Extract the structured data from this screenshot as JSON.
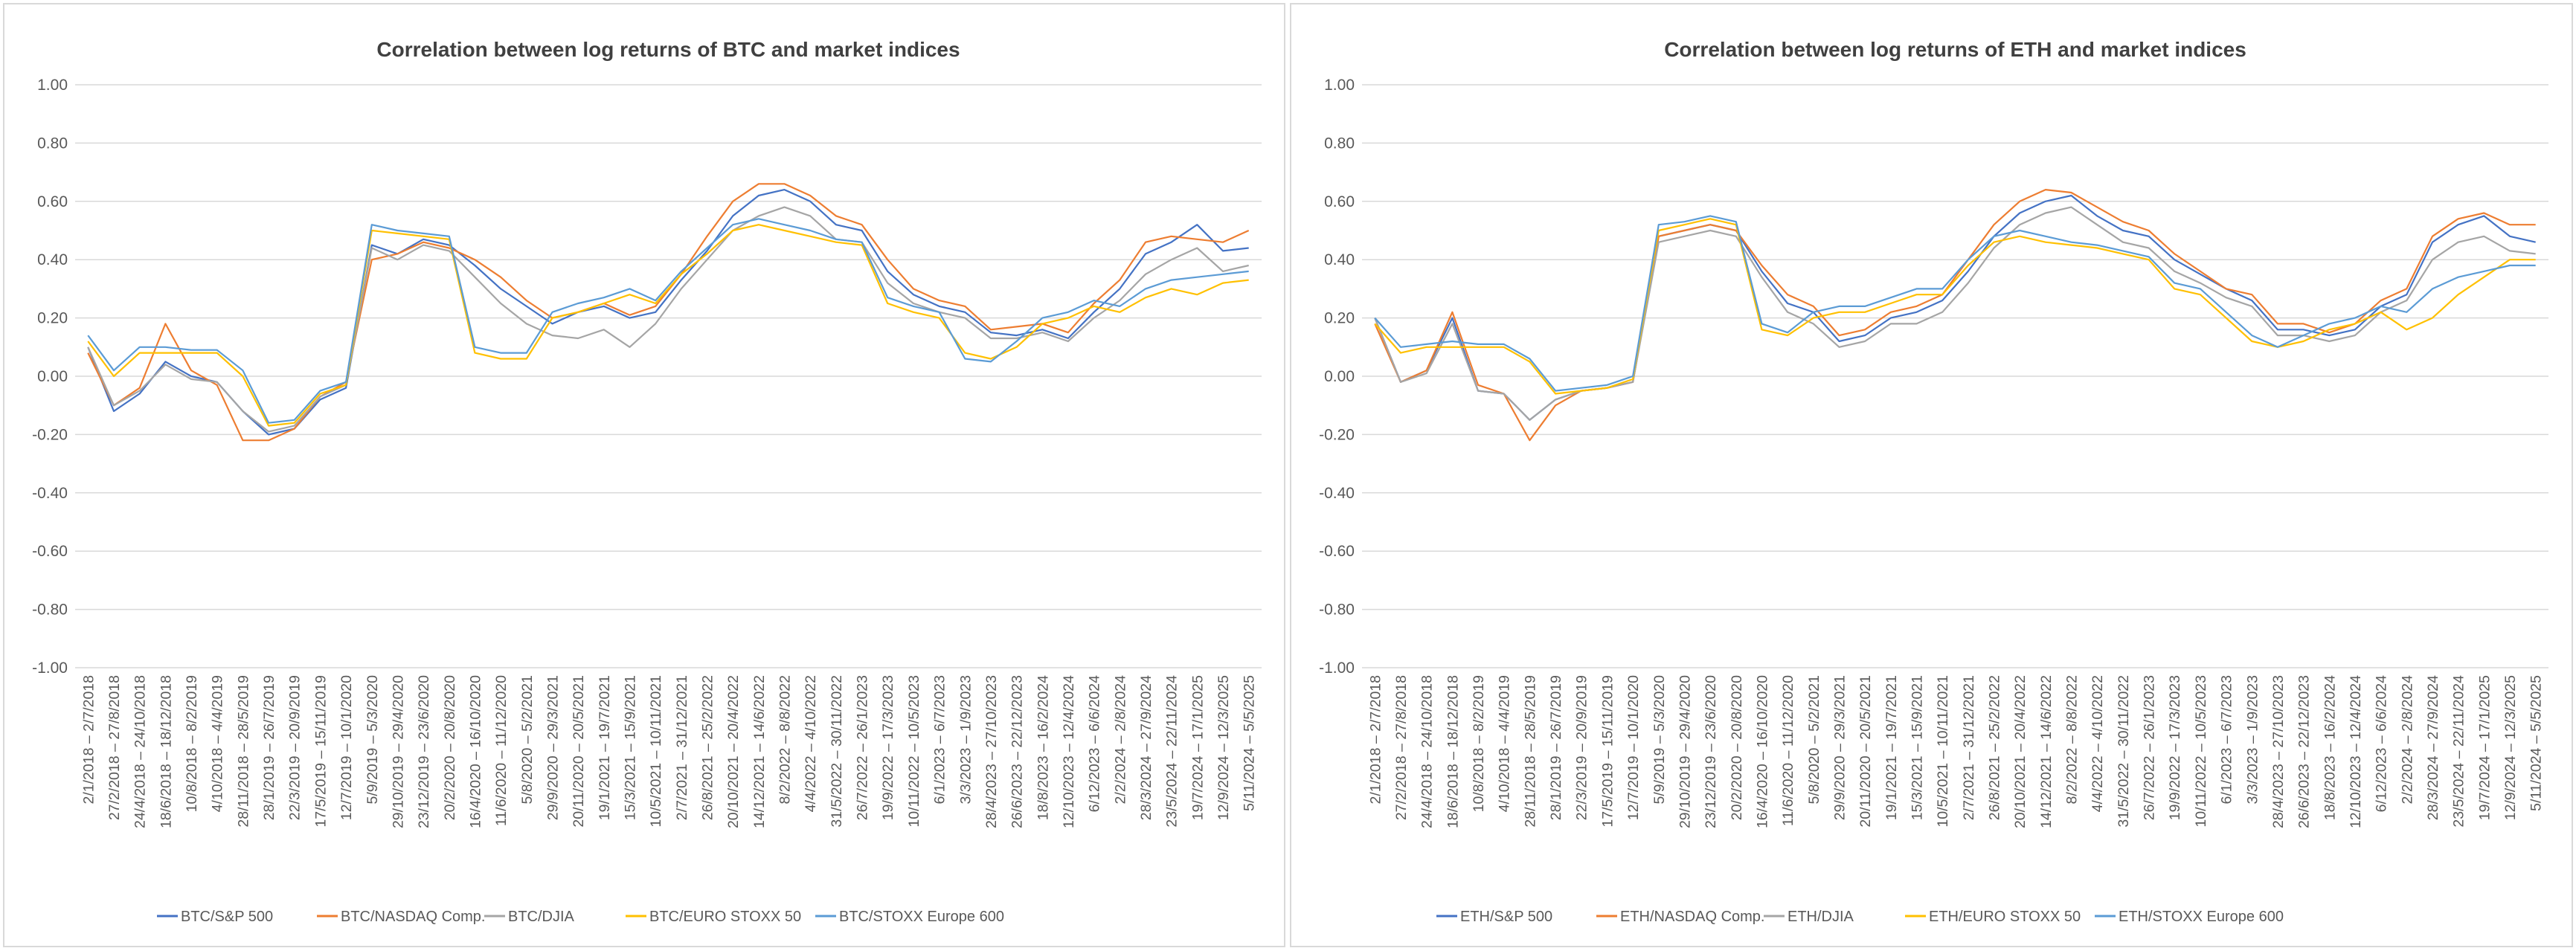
{
  "chart_data": [
    {
      "type": "line",
      "title": "Correlation between log returns of BTC and market indices",
      "xlabel": "",
      "ylabel": "",
      "ylim": [
        -1.0,
        1.0
      ],
      "y_ticks": [
        "1.00",
        "0.80",
        "0.60",
        "0.40",
        "0.20",
        "0.00",
        "-0.20",
        "-0.40",
        "-0.60",
        "-0.80",
        "-1.00"
      ],
      "grid": true,
      "legend_position": "bottom",
      "categories": [
        "2/1/2018 – 2/7/2018",
        "27/2/2018 – 27/8/2018",
        "24/4/2018 – 24/10/2018",
        "18/6/2018 – 18/12/2018",
        "10/8/2018 – 8/2/2019",
        "4/10/2018 – 4/4/2019",
        "28/11/2018 – 28/5/2019",
        "28/1/2019 – 26/7/2019",
        "22/3/2019 – 20/9/2019",
        "17/5/2019 – 15/11/2019",
        "12/7/2019 – 10/1/2020",
        "5/9/2019 – 5/3/2020",
        "29/10/2019 – 29/4/2020",
        "23/12/2019 – 23/6/2020",
        "20/2/2020 – 20/8/2020",
        "16/4/2020 – 16/10/2020",
        "11/6/2020 – 11/12/2020",
        "5/8/2020 – 5/2/2021",
        "29/9/2020 – 29/3/2021",
        "20/11/2020 – 20/5/2021",
        "19/1/2021 – 19/7/2021",
        "15/3/2021 – 15/9/2021",
        "10/5/2021 – 10/11/2021",
        "2/7/2021 – 31/12/2021",
        "26/8/2021 – 25/2/2022",
        "20/10/2021 – 20/4/2022",
        "14/12/2021 – 14/6/2022",
        "8/2/2022 – 8/8/2022",
        "4/4/2022 – 4/10/2022",
        "31/5/2022 – 30/11/2022",
        "26/7/2022 – 26/1/2023",
        "19/9/2022 – 17/3/2023",
        "10/11/2022 – 10/5/2023",
        "6/1/2023 – 6/7/2023",
        "3/3/2023 – 1/9/2023",
        "28/4/2023 – 27/10/2023",
        "26/6/2023 – 22/12/2023",
        "18/8/2023 – 16/2/2024",
        "12/10/2023 – 12/4/2024",
        "6/12/2023 – 6/6/2024",
        "2/2/2024 – 2/8/2024",
        "28/3/2024 – 27/9/2024",
        "23/5/2024 – 22/11/2024",
        "19/7/2024 – 17/1/2025",
        "12/9/2024 – 12/3/2025",
        "5/11/2024 – 5/5/2025"
      ],
      "series": [
        {
          "name": "BTC/S&P 500",
          "color": "#4472c4",
          "values": [
            0.1,
            -0.12,
            -0.06,
            0.05,
            0.0,
            -0.02,
            -0.12,
            -0.2,
            -0.18,
            -0.08,
            -0.04,
            0.45,
            0.42,
            0.47,
            0.45,
            0.38,
            0.3,
            0.24,
            0.18,
            0.22,
            0.24,
            0.2,
            0.22,
            0.33,
            0.43,
            0.55,
            0.62,
            0.64,
            0.6,
            0.52,
            0.5,
            0.36,
            0.28,
            0.24,
            0.22,
            0.15,
            0.14,
            0.16,
            0.13,
            0.22,
            0.3,
            0.42,
            0.46,
            0.52,
            0.43,
            0.44
          ]
        },
        {
          "name": "BTC/NASDAQ Comp.",
          "color": "#ed7d31",
          "values": [
            0.08,
            -0.1,
            -0.04,
            0.18,
            0.02,
            -0.03,
            -0.22,
            -0.22,
            -0.18,
            -0.07,
            -0.02,
            0.4,
            0.42,
            0.46,
            0.44,
            0.4,
            0.34,
            0.26,
            0.2,
            0.22,
            0.25,
            0.21,
            0.24,
            0.35,
            0.48,
            0.6,
            0.66,
            0.66,
            0.62,
            0.55,
            0.52,
            0.4,
            0.3,
            0.26,
            0.24,
            0.16,
            0.17,
            0.18,
            0.15,
            0.25,
            0.33,
            0.46,
            0.48,
            0.47,
            0.46,
            0.5
          ]
        },
        {
          "name": "BTC/DJIA",
          "color": "#a5a5a5",
          "values": [
            0.1,
            -0.1,
            -0.05,
            0.04,
            -0.01,
            -0.02,
            -0.12,
            -0.19,
            -0.17,
            -0.07,
            -0.03,
            0.44,
            0.4,
            0.45,
            0.43,
            0.34,
            0.25,
            0.18,
            0.14,
            0.13,
            0.16,
            0.1,
            0.18,
            0.3,
            0.4,
            0.5,
            0.55,
            0.58,
            0.55,
            0.47,
            0.46,
            0.32,
            0.25,
            0.22,
            0.2,
            0.13,
            0.13,
            0.15,
            0.12,
            0.2,
            0.26,
            0.35,
            0.4,
            0.44,
            0.36,
            0.38
          ]
        },
        {
          "name": "BTC/EURO STOXX 50",
          "color": "#ffc000",
          "values": [
            0.12,
            0.0,
            0.08,
            0.08,
            0.08,
            0.08,
            0.0,
            -0.17,
            -0.16,
            -0.06,
            -0.03,
            0.5,
            0.49,
            0.48,
            0.47,
            0.08,
            0.06,
            0.06,
            0.2,
            0.22,
            0.25,
            0.28,
            0.25,
            0.35,
            0.42,
            0.5,
            0.52,
            0.5,
            0.48,
            0.46,
            0.45,
            0.25,
            0.22,
            0.2,
            0.08,
            0.06,
            0.1,
            0.18,
            0.2,
            0.24,
            0.22,
            0.27,
            0.3,
            0.28,
            0.32,
            0.33
          ]
        },
        {
          "name": "BTC/STOXX Europe 600",
          "color": "#5b9bd5",
          "values": [
            0.14,
            0.02,
            0.1,
            0.1,
            0.09,
            0.09,
            0.02,
            -0.16,
            -0.15,
            -0.05,
            -0.02,
            0.52,
            0.5,
            0.49,
            0.48,
            0.1,
            0.08,
            0.08,
            0.22,
            0.25,
            0.27,
            0.3,
            0.26,
            0.36,
            0.44,
            0.52,
            0.54,
            0.52,
            0.5,
            0.47,
            0.46,
            0.27,
            0.24,
            0.22,
            0.06,
            0.05,
            0.12,
            0.2,
            0.22,
            0.26,
            0.24,
            0.3,
            0.33,
            0.34,
            0.35,
            0.36
          ]
        }
      ]
    },
    {
      "type": "line",
      "title": "Correlation between log returns of ETH and market indices",
      "xlabel": "",
      "ylabel": "",
      "ylim": [
        -1.0,
        1.0
      ],
      "y_ticks": [
        "1.00",
        "0.80",
        "0.60",
        "0.40",
        "0.20",
        "0.00",
        "-0.20",
        "-0.40",
        "-0.60",
        "-0.80",
        "-1.00"
      ],
      "grid": true,
      "legend_position": "bottom",
      "categories": [
        "2/1/2018 – 2/7/2018",
        "27/2/2018 – 27/8/2018",
        "24/4/2018 – 24/10/2018",
        "18/6/2018 – 18/12/2018",
        "10/8/2018 – 8/2/2019",
        "4/10/2018 – 4/4/2019",
        "28/11/2018 – 28/5/2019",
        "28/1/2019 – 26/7/2019",
        "22/3/2019 – 20/9/2019",
        "17/5/2019 – 15/11/2019",
        "12/7/2019 – 10/1/2020",
        "5/9/2019 – 5/3/2020",
        "29/10/2019 – 29/4/2020",
        "23/12/2019 – 23/6/2020",
        "20/2/2020 – 20/8/2020",
        "16/4/2020 – 16/10/2020",
        "11/6/2020 – 11/12/2020",
        "5/8/2020 – 5/2/2021",
        "29/9/2020 – 29/3/2021",
        "20/11/2020 – 20/5/2021",
        "19/1/2021 – 19/7/2021",
        "15/3/2021 – 15/9/2021",
        "10/5/2021 – 10/11/2021",
        "2/7/2021 – 31/12/2021",
        "26/8/2021 – 25/2/2022",
        "20/10/2021 – 20/4/2022",
        "14/12/2021 – 14/6/2022",
        "8/2/2022 – 8/8/2022",
        "4/4/2022 – 4/10/2022",
        "31/5/2022 – 30/11/2022",
        "26/7/2022 – 26/1/2023",
        "19/9/2022 – 17/3/2023",
        "10/11/2022 – 10/5/2023",
        "6/1/2023 – 6/7/2023",
        "3/3/2023 – 1/9/2023",
        "28/4/2023 – 27/10/2023",
        "26/6/2023 – 22/12/2023",
        "18/8/2023 – 16/2/2024",
        "12/10/2023 – 12/4/2024",
        "6/12/2023 – 6/6/2024",
        "2/2/2024 – 2/8/2024",
        "28/3/2024 – 27/9/2024",
        "23/5/2024 – 22/11/2024",
        "19/7/2024 – 17/1/2025",
        "12/9/2024 – 12/3/2025",
        "5/11/2024 – 5/5/2025"
      ],
      "series": [
        {
          "name": "ETH/S&P 500",
          "color": "#4472c4",
          "values": [
            0.2,
            -0.02,
            0.02,
            0.2,
            -0.05,
            -0.06,
            -0.15,
            -0.08,
            -0.05,
            -0.04,
            -0.02,
            0.48,
            0.5,
            0.52,
            0.5,
            0.36,
            0.25,
            0.22,
            0.12,
            0.14,
            0.2,
            0.22,
            0.26,
            0.36,
            0.48,
            0.56,
            0.6,
            0.62,
            0.55,
            0.5,
            0.48,
            0.4,
            0.35,
            0.3,
            0.26,
            0.16,
            0.16,
            0.14,
            0.16,
            0.24,
            0.28,
            0.46,
            0.52,
            0.55,
            0.48,
            0.46
          ]
        },
        {
          "name": "ETH/NASDAQ Comp.",
          "color": "#ed7d31",
          "values": [
            0.18,
            -0.02,
            0.02,
            0.22,
            -0.03,
            -0.06,
            -0.22,
            -0.1,
            -0.05,
            -0.04,
            -0.02,
            0.48,
            0.5,
            0.52,
            0.5,
            0.38,
            0.28,
            0.24,
            0.14,
            0.16,
            0.22,
            0.24,
            0.28,
            0.4,
            0.52,
            0.6,
            0.64,
            0.63,
            0.58,
            0.53,
            0.5,
            0.42,
            0.36,
            0.3,
            0.28,
            0.18,
            0.18,
            0.15,
            0.18,
            0.26,
            0.3,
            0.48,
            0.54,
            0.56,
            0.52,
            0.52
          ]
        },
        {
          "name": "ETH/DJIA",
          "color": "#a5a5a5",
          "values": [
            0.2,
            -0.02,
            0.01,
            0.18,
            -0.05,
            -0.06,
            -0.15,
            -0.08,
            -0.05,
            -0.04,
            -0.02,
            0.46,
            0.48,
            0.5,
            0.48,
            0.34,
            0.22,
            0.18,
            0.1,
            0.12,
            0.18,
            0.18,
            0.22,
            0.32,
            0.44,
            0.52,
            0.56,
            0.58,
            0.52,
            0.46,
            0.44,
            0.36,
            0.32,
            0.27,
            0.24,
            0.14,
            0.14,
            0.12,
            0.14,
            0.22,
            0.26,
            0.4,
            0.46,
            0.48,
            0.43,
            0.42
          ]
        },
        {
          "name": "ETH/EURO STOXX 50",
          "color": "#ffc000",
          "values": [
            0.18,
            0.08,
            0.1,
            0.1,
            0.1,
            0.1,
            0.05,
            -0.06,
            -0.05,
            -0.04,
            -0.01,
            0.5,
            0.52,
            0.54,
            0.52,
            0.16,
            0.14,
            0.2,
            0.22,
            0.22,
            0.25,
            0.28,
            0.28,
            0.38,
            0.46,
            0.48,
            0.46,
            0.45,
            0.44,
            0.42,
            0.4,
            0.3,
            0.28,
            0.2,
            0.12,
            0.1,
            0.12,
            0.16,
            0.18,
            0.22,
            0.16,
            0.2,
            0.28,
            0.34,
            0.4,
            0.4
          ]
        },
        {
          "name": "ETH/STOXX Europe 600",
          "color": "#5b9bd5",
          "values": [
            0.2,
            0.1,
            0.11,
            0.12,
            0.11,
            0.11,
            0.06,
            -0.05,
            -0.04,
            -0.03,
            0.0,
            0.52,
            0.53,
            0.55,
            0.53,
            0.18,
            0.15,
            0.22,
            0.24,
            0.24,
            0.27,
            0.3,
            0.3,
            0.4,
            0.48,
            0.5,
            0.48,
            0.46,
            0.45,
            0.43,
            0.41,
            0.32,
            0.3,
            0.22,
            0.14,
            0.1,
            0.14,
            0.18,
            0.2,
            0.24,
            0.22,
            0.3,
            0.34,
            0.36,
            0.38,
            0.38
          ]
        }
      ]
    }
  ]
}
